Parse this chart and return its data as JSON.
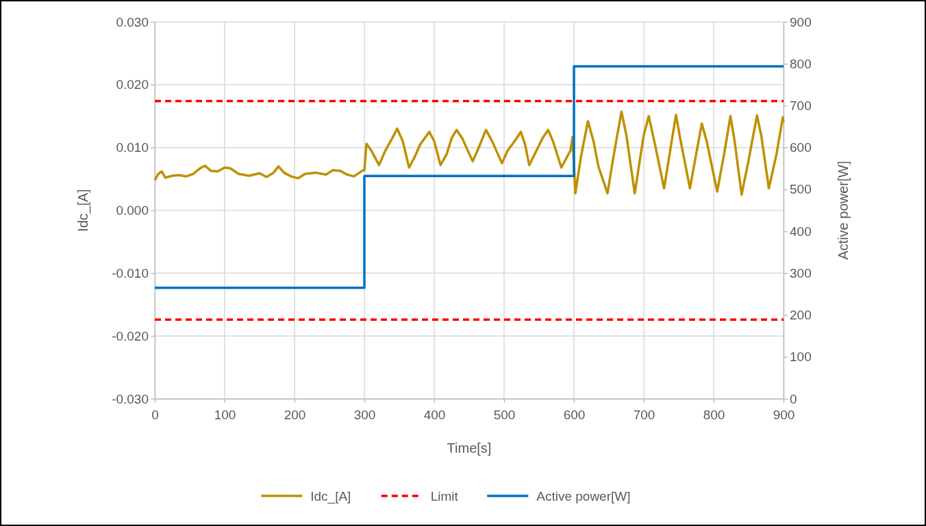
{
  "chart_data": {
    "type": "line",
    "xlabel": "Time[s]",
    "ylabel": "Idc_[A]",
    "y2label": "Active power[W]",
    "xlim": [
      0,
      900
    ],
    "xticks": [
      0,
      100,
      200,
      300,
      400,
      500,
      600,
      700,
      800,
      900
    ],
    "ylim": [
      -0.03,
      0.03
    ],
    "yticks": [
      {
        "value": -0.03,
        "label": "-0.030"
      },
      {
        "value": -0.02,
        "label": "-0.020"
      },
      {
        "value": -0.01,
        "label": "-0.010"
      },
      {
        "value": 0,
        "label": "0.000"
      },
      {
        "value": 0.01,
        "label": "0.010"
      },
      {
        "value": 0.02,
        "label": "0.020"
      },
      {
        "value": 0.03,
        "label": "0.030"
      }
    ],
    "y2lim": [
      0,
      900
    ],
    "y2ticks": [
      0,
      100,
      200,
      300,
      400,
      500,
      600,
      700,
      800,
      900
    ],
    "grid": true,
    "legend": "bottom",
    "marker": "none",
    "series": [
      {
        "name": "Idc_[A]",
        "color": "#bf9000",
        "x": [
          0,
          5,
          10,
          15,
          25,
          35,
          45,
          55,
          65,
          72,
          80,
          90,
          100,
          108,
          120,
          135,
          150,
          160,
          170,
          177,
          185,
          195,
          205,
          215,
          230,
          245,
          255,
          265,
          275,
          285,
          297,
          300,
          303,
          310,
          321,
          330,
          340,
          347,
          355,
          364,
          372,
          380,
          393,
          400,
          409,
          418,
          425,
          432,
          440,
          455,
          463,
          474,
          482,
          497,
          505,
          515,
          524,
          530,
          536,
          545,
          555,
          563,
          570,
          582,
          590,
          595,
          598,
          602,
          610,
          620,
          628,
          635,
          648,
          655,
          662,
          668,
          675,
          687,
          695,
          700,
          707,
          715,
          729,
          737,
          746,
          752,
          766,
          775,
          783,
          790,
          805,
          815,
          824,
          830,
          840,
          850,
          862,
          868,
          879,
          890,
          899,
          900
        ],
        "values": [
          0.0048,
          0.0058,
          0.0062,
          0.0052,
          0.0055,
          0.0056,
          0.0054,
          0.0058,
          0.0067,
          0.0071,
          0.0063,
          0.0062,
          0.0068,
          0.0067,
          0.0058,
          0.0055,
          0.0059,
          0.0053,
          0.006,
          0.007,
          0.006,
          0.0054,
          0.0051,
          0.0058,
          0.006,
          0.0057,
          0.0064,
          0.0063,
          0.0057,
          0.0054,
          0.0063,
          0.0064,
          0.0106,
          0.0095,
          0.0072,
          0.0095,
          0.0115,
          0.013,
          0.011,
          0.0068,
          0.0085,
          0.0105,
          0.0125,
          0.011,
          0.0072,
          0.009,
          0.0115,
          0.0128,
          0.0115,
          0.0078,
          0.0098,
          0.0128,
          0.0112,
          0.0075,
          0.0095,
          0.011,
          0.0125,
          0.0105,
          0.0072,
          0.0092,
          0.0115,
          0.0128,
          0.011,
          0.0068,
          0.0085,
          0.0095,
          0.0117,
          0.0027,
          0.0085,
          0.0142,
          0.011,
          0.007,
          0.0027,
          0.0075,
          0.012,
          0.0157,
          0.012,
          0.0027,
          0.0085,
          0.012,
          0.015,
          0.011,
          0.0035,
          0.009,
          0.0152,
          0.0115,
          0.0035,
          0.009,
          0.0138,
          0.011,
          0.003,
          0.009,
          0.015,
          0.011,
          0.0025,
          0.008,
          0.0151,
          0.012,
          0.0035,
          0.009,
          0.0148,
          0.014
        ]
      },
      {
        "name": "Limit",
        "color": "#ff0000",
        "line_style": "dashed",
        "x": [
          0,
          900
        ],
        "values": [
          0.0174,
          0.0174
        ]
      },
      {
        "color": "#ff0000",
        "line_style": "dashed",
        "x": [
          0,
          900
        ],
        "values": [
          -0.0174,
          -0.0174
        ]
      },
      {
        "name": "Active power[W]",
        "type": "step",
        "axis": "y2",
        "color": "#0070c0",
        "x": [
          0,
          300,
          600,
          900
        ],
        "values": [
          265,
          532,
          794,
          794
        ]
      }
    ]
  }
}
